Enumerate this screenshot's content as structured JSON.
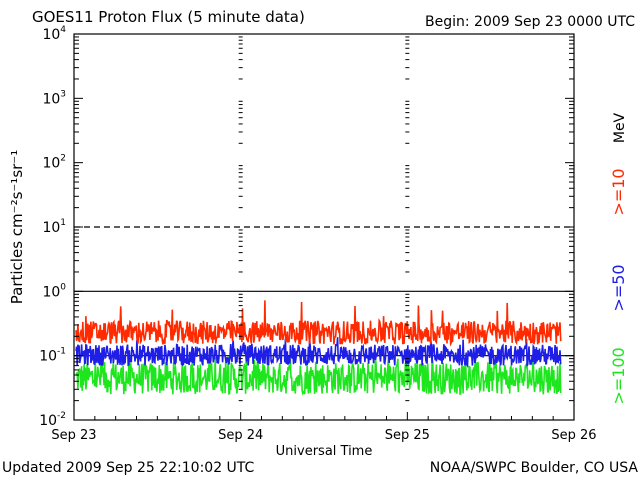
{
  "chart_data": {
    "type": "line",
    "title": "GOES11 Proton Flux (5 minute data)",
    "begin_label": "Begin: 2009 Sep 23 0000 UTC",
    "xlabel": "Universal Time",
    "ylabel": "Particles cm⁻²s⁻¹sr⁻¹",
    "y_scale": "log",
    "ylim": [
      0.01,
      10000
    ],
    "y_ticks": [
      {
        "value": 0.01,
        "base": "10",
        "exp": "-2"
      },
      {
        "value": 0.1,
        "base": "10",
        "exp": "-1"
      },
      {
        "value": 1,
        "base": "10",
        "exp": "0"
      },
      {
        "value": 10,
        "base": "10",
        "exp": "1"
      },
      {
        "value": 100,
        "base": "10",
        "exp": "2"
      },
      {
        "value": 1000,
        "base": "10",
        "exp": "3"
      },
      {
        "value": 10000,
        "base": "10",
        "exp": "4"
      }
    ],
    "x_days": [
      "Sep 23",
      "Sep 24",
      "Sep 25",
      "Sep 26"
    ],
    "thresholds": [
      {
        "value": 10,
        "style": "dashed"
      },
      {
        "value": 1,
        "style": "solid"
      },
      {
        "value": 0.1,
        "style": "solid"
      }
    ],
    "unit_label": "MeV",
    "series": [
      {
        "name": ">=10",
        "color": "#ff2a00",
        "typical_range": [
          0.15,
          0.35
        ],
        "peak": 0.75
      },
      {
        "name": ">=50",
        "color": "#1e1ee6",
        "typical_range": [
          0.07,
          0.15
        ],
        "peak": 0.2
      },
      {
        "name": ">=100",
        "color": "#1ee61e",
        "typical_range": [
          0.025,
          0.08
        ],
        "peak": 0.1
      }
    ],
    "data_end_fraction_of_day3": 0.92,
    "grid": false
  },
  "footer": {
    "updated": "Updated 2009 Sep 25 22:10:02 UTC",
    "source": "NOAA/SWPC Boulder, CO USA"
  }
}
